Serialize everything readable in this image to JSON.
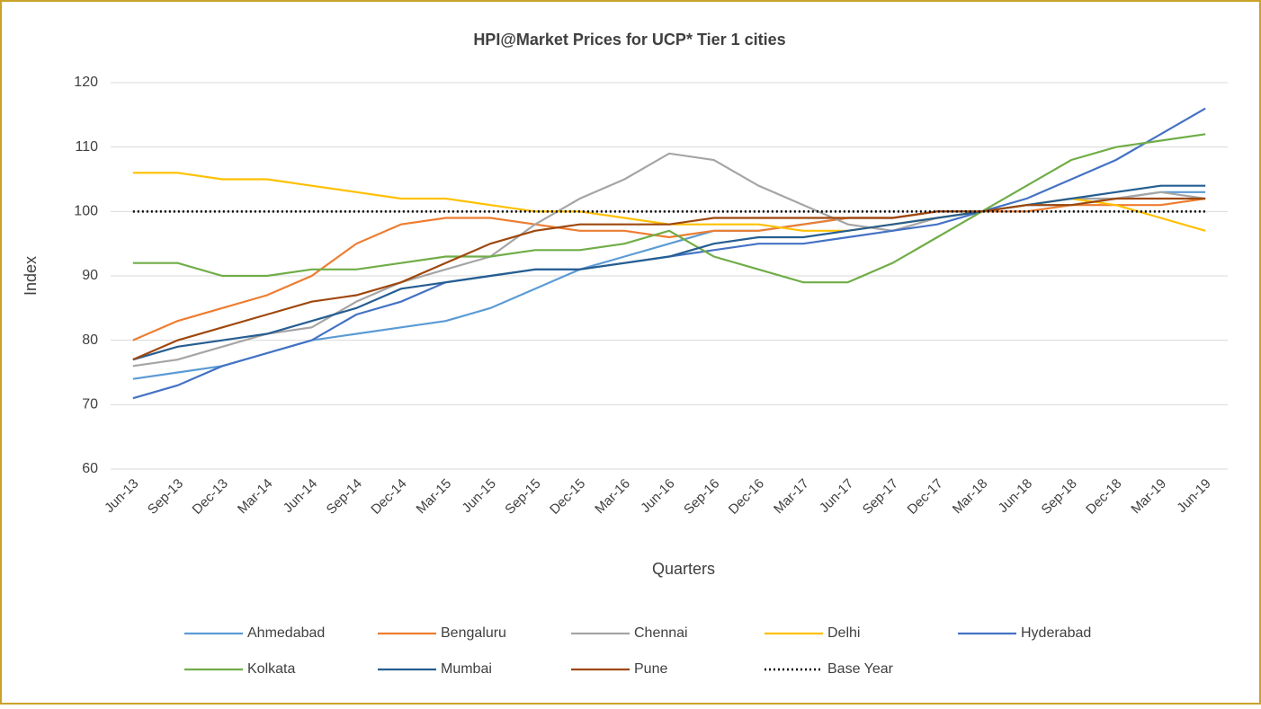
{
  "chart_data": {
    "type": "line",
    "title": "HPI@Market Prices for UCP* Tier 1 cities",
    "x_label": "Quarters",
    "y_label": "Index",
    "categories": [
      "Jun-13",
      "Sep-13",
      "Dec-13",
      "Mar-14",
      "Jun-14",
      "Sep-14",
      "Dec-14",
      "Mar-15",
      "Jun-15",
      "Sep-15",
      "Dec-15",
      "Mar-16",
      "Jun-16",
      "Sep-16",
      "Dec-16",
      "Mar-17",
      "Jun-17",
      "Sep-17",
      "Dec-17",
      "Mar-18",
      "Jun-18",
      "Sep-18",
      "Dec-18",
      "Mar-19",
      "Jun-19"
    ],
    "ylim": [
      60,
      120
    ],
    "yticks": [
      60,
      70,
      80,
      90,
      100,
      110,
      120
    ],
    "grid": true,
    "legend": "bottom",
    "series": [
      {
        "name": "Ahmedabad",
        "color": "#5b9bd5",
        "values": [
          74,
          75,
          76,
          78,
          80,
          81,
          82,
          83,
          85,
          88,
          91,
          93,
          95,
          97,
          97,
          98,
          99,
          99,
          100,
          100,
          101,
          101,
          102,
          103,
          103
        ]
      },
      {
        "name": "Bengaluru",
        "color": "#ed7d31",
        "values": [
          80,
          83,
          85,
          87,
          90,
          95,
          98,
          99,
          99,
          98,
          97,
          97,
          96,
          97,
          97,
          98,
          99,
          99,
          100,
          100,
          100,
          101,
          101,
          101,
          102
        ]
      },
      {
        "name": "Chennai",
        "color": "#a5a5a5",
        "values": [
          76,
          77,
          79,
          81,
          82,
          86,
          89,
          91,
          93,
          98,
          102,
          105,
          109,
          108,
          104,
          101,
          98,
          97,
          99,
          100,
          101,
          102,
          102,
          103,
          102
        ]
      },
      {
        "name": "Delhi",
        "color": "#ffc000",
        "values": [
          106,
          106,
          105,
          105,
          104,
          103,
          102,
          102,
          101,
          100,
          100,
          99,
          98,
          98,
          98,
          97,
          97,
          98,
          99,
          100,
          101,
          102,
          101,
          99,
          97
        ]
      },
      {
        "name": "Hyderabad",
        "color": "#4472c4",
        "values": [
          71,
          73,
          76,
          78,
          80,
          84,
          86,
          89,
          90,
          91,
          91,
          92,
          93,
          94,
          95,
          95,
          96,
          97,
          98,
          100,
          102,
          105,
          108,
          112,
          116
        ]
      },
      {
        "name": "Kolkata",
        "color": "#70ad47",
        "values": [
          92,
          92,
          90,
          90,
          91,
          91,
          92,
          93,
          93,
          94,
          94,
          95,
          97,
          93,
          91,
          89,
          89,
          92,
          96,
          100,
          104,
          108,
          110,
          111,
          112
        ]
      },
      {
        "name": "Mumbai",
        "color": "#255e91",
        "values": [
          77,
          79,
          80,
          81,
          83,
          85,
          88,
          89,
          90,
          91,
          91,
          92,
          93,
          95,
          96,
          96,
          97,
          98,
          99,
          100,
          101,
          102,
          103,
          104,
          104
        ]
      },
      {
        "name": "Pune",
        "color": "#9e480e",
        "values": [
          77,
          80,
          82,
          84,
          86,
          87,
          89,
          92,
          95,
          97,
          98,
          98,
          98,
          99,
          99,
          99,
          99,
          99,
          100,
          100,
          101,
          101,
          102,
          102,
          102
        ]
      },
      {
        "name": "Base Year",
        "color": "#000000",
        "dash": "dotted",
        "values": [
          100,
          100,
          100,
          100,
          100,
          100,
          100,
          100,
          100,
          100,
          100,
          100,
          100,
          100,
          100,
          100,
          100,
          100,
          100,
          100,
          100,
          100,
          100,
          100,
          100
        ]
      }
    ]
  }
}
